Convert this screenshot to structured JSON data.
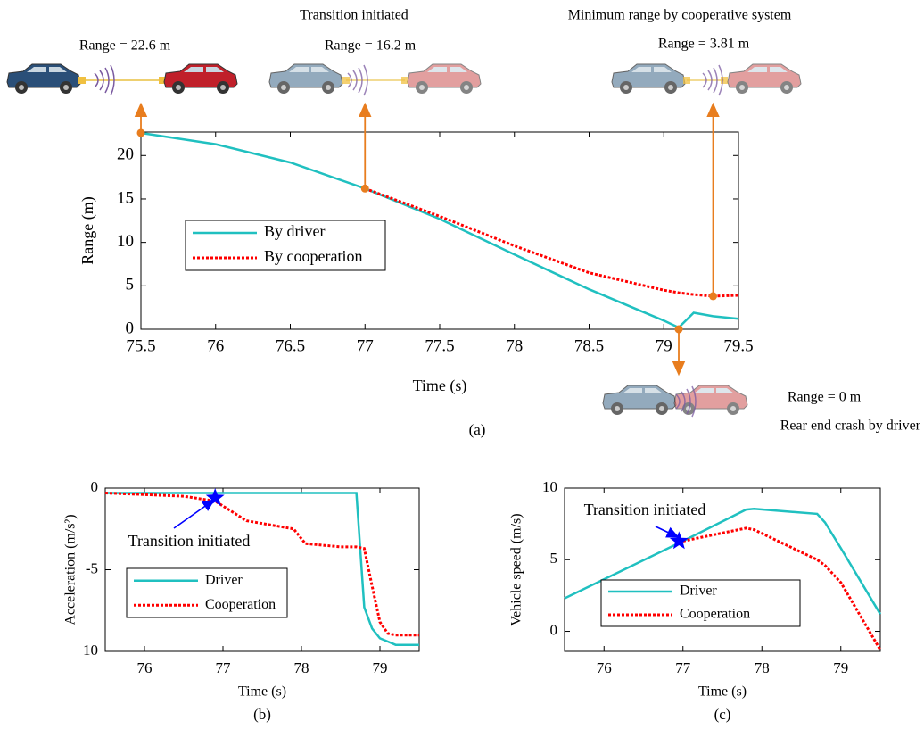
{
  "chart_data": [
    {
      "type": "line",
      "caption": "(a)",
      "xlabel": "Time (s)",
      "ylabel": "Range (m)",
      "x": [
        75.5,
        76,
        76.5,
        77,
        77.5,
        78,
        78.5,
        79,
        79.1,
        79.2,
        79.33,
        79.5
      ],
      "series": [
        {
          "name": "By driver",
          "color": "#20c0c0",
          "dash": "solid",
          "values": [
            22.6,
            21.3,
            19.2,
            16.2,
            12.7,
            8.6,
            4.6,
            1.0,
            0.2,
            1.9,
            1.5,
            1.2
          ]
        },
        {
          "name": "By cooperation",
          "color": "#ff0000",
          "dash": "dotted",
          "values": [
            null,
            null,
            null,
            16.2,
            13.0,
            9.6,
            6.5,
            4.5,
            4.2,
            4.0,
            3.81,
            3.9
          ]
        }
      ],
      "xlim": [
        75.5,
        79.5
      ],
      "xticks": [
        75.5,
        76,
        76.5,
        77,
        77.5,
        78,
        78.5,
        79,
        79.5
      ],
      "ylim": [
        0,
        22.7
      ],
      "yticks": [
        0,
        5,
        10,
        15,
        20
      ],
      "legend": true,
      "annotations": [
        {
          "text": "Transition initiated",
          "color": "#0000ff"
        },
        {
          "text": "Minimum range by  cooperative system",
          "color": "#ff0000"
        },
        {
          "text": "Rear end crash by driver",
          "color": "#ff0000"
        }
      ],
      "callouts": [
        {
          "x": 75.5,
          "y": 22.6,
          "label": "Range = 22.6 m"
        },
        {
          "x": 77,
          "y": 16.2,
          "label": "Range = 16.2 m"
        },
        {
          "x": 79.33,
          "y": 3.81,
          "label": "Range = 3.81 m"
        },
        {
          "x": 79.1,
          "y": 0,
          "label": "Range = 0 m"
        }
      ],
      "callout_color": "#e87d1e"
    },
    {
      "type": "line",
      "caption": "(b)",
      "xlabel": "Time (s)",
      "ylabel": "Acceleration (m/s²)",
      "x": [
        75.5,
        76,
        76.5,
        76.9,
        77.3,
        77.9,
        78.05,
        78.5,
        78.7,
        78.8,
        78.9,
        79,
        79.1,
        79.2,
        79.5
      ],
      "series": [
        {
          "name": "Driver",
          "color": "#20c0c0",
          "dash": "solid",
          "values": [
            -0.3,
            -0.3,
            -0.3,
            -0.3,
            -0.3,
            -0.3,
            -0.3,
            -0.3,
            -0.3,
            -7.3,
            -8.6,
            -9.2,
            -9.4,
            -9.6,
            -9.6
          ]
        },
        {
          "name": "Cooperation",
          "color": "#ff0000",
          "dash": "dotted",
          "values": [
            -0.3,
            -0.4,
            -0.5,
            -0.8,
            -2.0,
            -2.5,
            -3.4,
            -3.6,
            -3.6,
            -3.7,
            -6.0,
            -8.2,
            -8.9,
            -9.0,
            -9.0
          ]
        }
      ],
      "xlim": [
        75.5,
        79.5
      ],
      "xticks": [
        76,
        77,
        78,
        79
      ],
      "ylim": [
        -10,
        0
      ],
      "yticks": [
        0,
        -5,
        {
          "value": -10,
          "label": "10"
        }
      ],
      "legend": true,
      "star": {
        "text": "Transition initiated",
        "x": 76.9,
        "y": -0.6,
        "color": "#0000ff"
      }
    },
    {
      "type": "line",
      "caption": "(c)",
      "xlabel": "Time (s)",
      "ylabel": "Vehicle speed (m/s)",
      "x": [
        75.5,
        77,
        77.8,
        77.9,
        78.7,
        78.8,
        79,
        79.5
      ],
      "series": [
        {
          "name": "Driver",
          "color": "#20c0c0",
          "dash": "solid",
          "values": [
            2.3,
            6.3,
            8.5,
            8.55,
            8.2,
            7.6,
            5.8,
            1.2
          ]
        },
        {
          "name": "Cooperation",
          "color": "#ff0000",
          "dash": "dotted",
          "values": [
            null,
            6.3,
            7.2,
            7.1,
            5.0,
            4.6,
            3.4,
            -1.3
          ]
        }
      ],
      "xlim": [
        75.5,
        79.5
      ],
      "xticks": [
        76,
        77,
        78,
        79
      ],
      "ylim": [
        -1.4,
        10
      ],
      "yticks": [
        0,
        5,
        10
      ],
      "legend": true,
      "star": {
        "text": "Transition initiated",
        "x": 76.95,
        "y": 6.3,
        "color": "#0000ff"
      }
    }
  ]
}
